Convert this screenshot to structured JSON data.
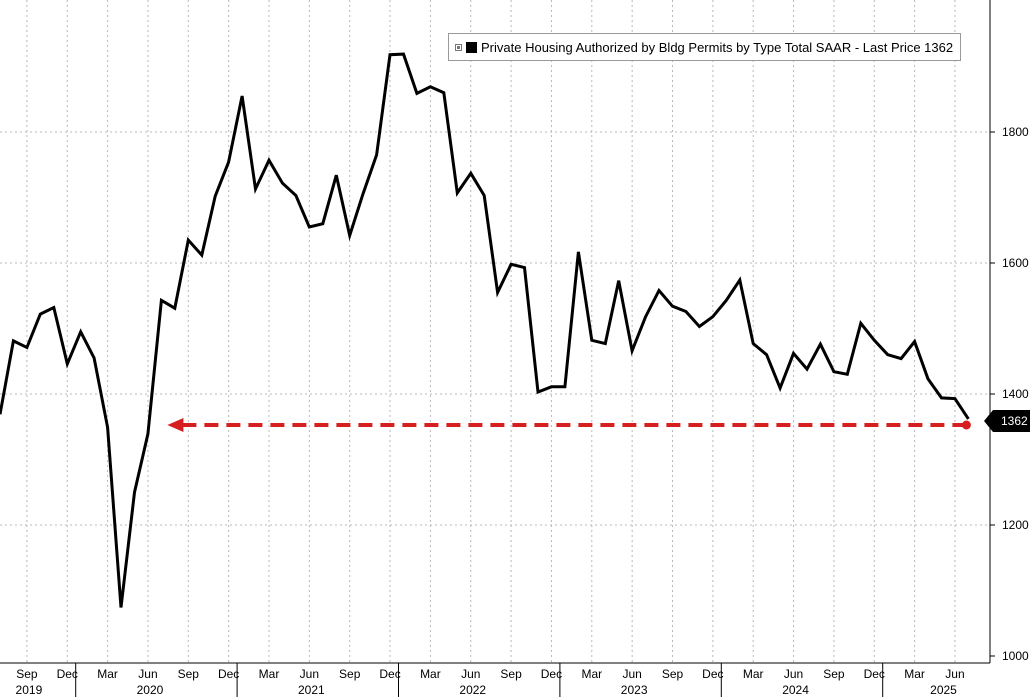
{
  "chart_data": {
    "type": "line",
    "series": [
      {
        "name": "Private Housing Authorized by Bldg Permits by Type Total SAAR - Last Price 1362",
        "color": "#000000",
        "x": [
          "2019-07",
          "2019-08",
          "2019-09",
          "2019-10",
          "2019-11",
          "2019-12",
          "2020-01",
          "2020-02",
          "2020-03",
          "2020-04",
          "2020-05",
          "2020-06",
          "2020-07",
          "2020-08",
          "2020-09",
          "2020-10",
          "2020-11",
          "2020-12",
          "2021-01",
          "2021-02",
          "2021-03",
          "2021-04",
          "2021-05",
          "2021-06",
          "2021-07",
          "2021-08",
          "2021-09",
          "2021-10",
          "2021-11",
          "2021-12",
          "2022-01",
          "2022-02",
          "2022-03",
          "2022-04",
          "2022-05",
          "2022-06",
          "2022-07",
          "2022-08",
          "2022-09",
          "2022-10",
          "2022-11",
          "2022-12",
          "2023-01",
          "2023-02",
          "2023-03",
          "2023-04",
          "2023-05",
          "2023-06",
          "2023-07",
          "2023-08",
          "2023-09",
          "2023-10",
          "2023-11",
          "2023-12",
          "2024-01",
          "2024-02",
          "2024-03",
          "2024-04",
          "2024-05",
          "2024-06",
          "2024-07",
          "2024-08",
          "2024-09",
          "2024-10",
          "2024-11",
          "2024-12",
          "2025-01",
          "2025-02",
          "2025-03",
          "2025-04",
          "2025-05",
          "2025-06",
          "2025-07"
        ],
        "values": [
          1369,
          1481,
          1471,
          1522,
          1532,
          1446,
          1495,
          1455,
          1349,
          1074,
          1250,
          1339,
          1543,
          1531,
          1635,
          1612,
          1702,
          1754,
          1855,
          1713,
          1757,
          1722,
          1703,
          1655,
          1660,
          1734,
          1642,
          1706,
          1765,
          1918,
          1919,
          1859,
          1869,
          1860,
          1707,
          1737,
          1703,
          1555,
          1598,
          1593,
          1403,
          1411,
          1411,
          1617,
          1482,
          1477,
          1573,
          1466,
          1518,
          1558,
          1534,
          1526,
          1503,
          1518,
          1543,
          1574,
          1477,
          1460,
          1409,
          1462,
          1438,
          1476,
          1434,
          1430,
          1508,
          1482,
          1460,
          1454,
          1480,
          1423,
          1394,
          1393,
          1362
        ]
      }
    ],
    "ylim": [
      1000,
      1990
    ],
    "y_ticks": [
      1000,
      1200,
      1400,
      1600,
      1800
    ],
    "x_month_ticks": [
      {
        "date": "2019-09",
        "label": "Sep"
      },
      {
        "date": "2019-12",
        "label": "Dec"
      },
      {
        "date": "2020-03",
        "label": "Mar"
      },
      {
        "date": "2020-06",
        "label": "Jun"
      },
      {
        "date": "2020-09",
        "label": "Sep"
      },
      {
        "date": "2020-12",
        "label": "Dec"
      },
      {
        "date": "2021-03",
        "label": "Mar"
      },
      {
        "date": "2021-06",
        "label": "Jun"
      },
      {
        "date": "2021-09",
        "label": "Sep"
      },
      {
        "date": "2021-12",
        "label": "Dec"
      },
      {
        "date": "2022-03",
        "label": "Mar"
      },
      {
        "date": "2022-06",
        "label": "Jun"
      },
      {
        "date": "2022-09",
        "label": "Sep"
      },
      {
        "date": "2022-12",
        "label": "Dec"
      },
      {
        "date": "2023-03",
        "label": "Mar"
      },
      {
        "date": "2023-06",
        "label": "Jun"
      },
      {
        "date": "2023-09",
        "label": "Sep"
      },
      {
        "date": "2023-12",
        "label": "Dec"
      },
      {
        "date": "2024-03",
        "label": "Mar"
      },
      {
        "date": "2024-06",
        "label": "Jun"
      },
      {
        "date": "2024-09",
        "label": "Sep"
      },
      {
        "date": "2024-12",
        "label": "Dec"
      },
      {
        "date": "2025-03",
        "label": "Mar"
      },
      {
        "date": "2025-06",
        "label": "Jun"
      }
    ],
    "x_year_labels": [
      {
        "date": "2019-09",
        "label": "2019"
      },
      {
        "date": "2020-06",
        "label": "2020"
      },
      {
        "date": "2021-06",
        "label": "2021"
      },
      {
        "date": "2022-06",
        "label": "2022"
      },
      {
        "date": "2023-06",
        "label": "2023"
      },
      {
        "date": "2024-06",
        "label": "2024"
      },
      {
        "date": "2025-05",
        "label": "2025"
      }
    ],
    "year_boundaries": [
      "2020-01",
      "2021-01",
      "2022-01",
      "2023-01",
      "2024-01",
      "2025-01"
    ],
    "grid": true,
    "legend": {
      "position": "top-right",
      "text": "Private Housing Authorized by Bldg Permits by Type Total SAAR - Last Price 1362"
    },
    "last_value_label": "1362",
    "annotation_arrow": {
      "color": "#d62020",
      "style": "dashed",
      "value": 1362,
      "from": "2025-07",
      "to": "2020-07"
    }
  }
}
